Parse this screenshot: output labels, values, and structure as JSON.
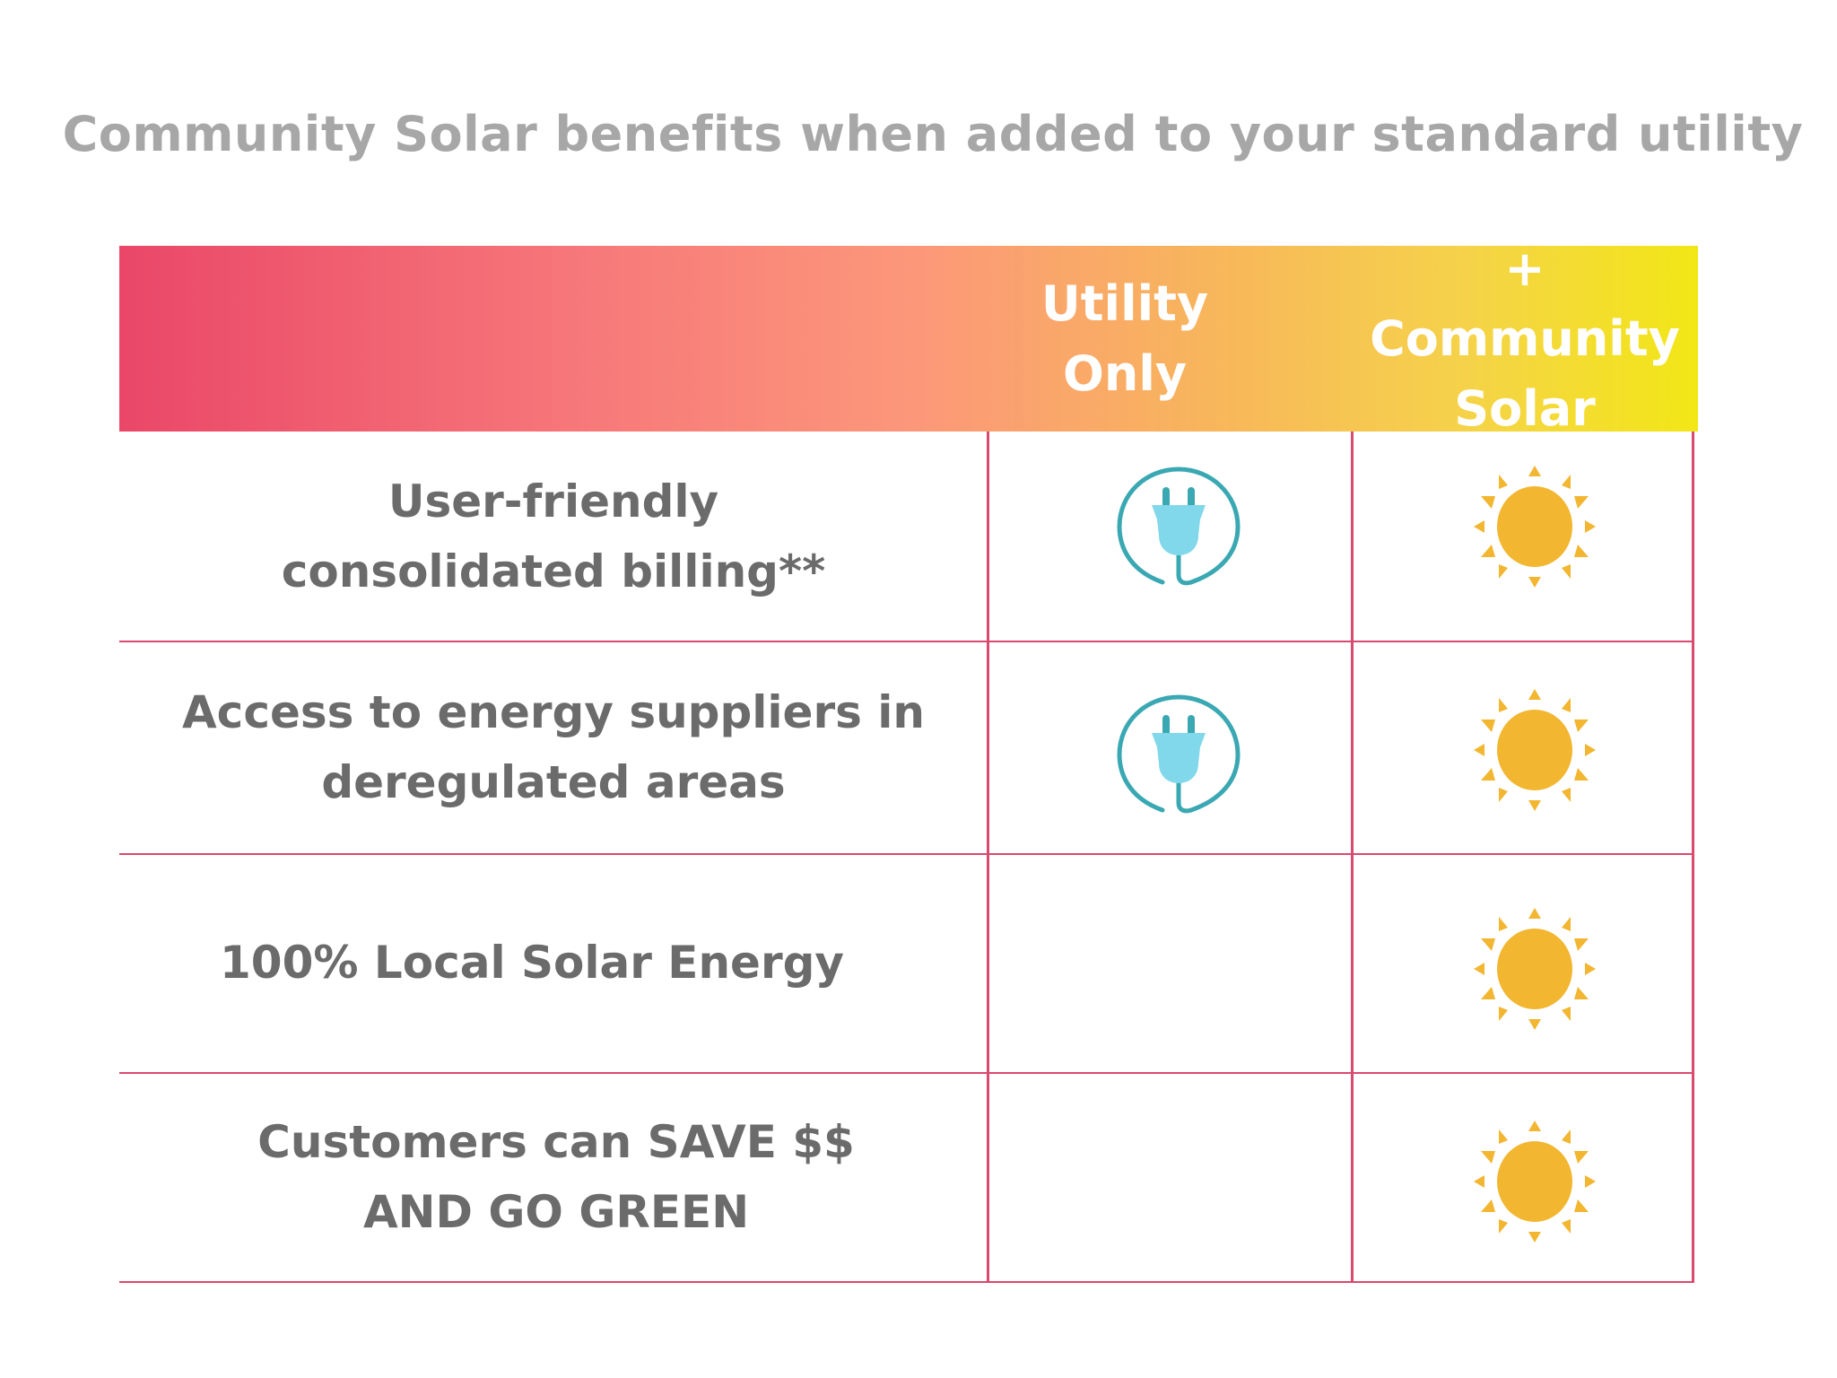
{
  "title": "Community Solar benefits when added to your standard utility",
  "columns": [
    {
      "label_line1": "Utility",
      "label_line2": "Only"
    },
    {
      "label_line1": "+ Community",
      "label_line2": "Solar"
    }
  ],
  "rows": [
    {
      "label_line1": "User-friendly",
      "label_line2": "consolidated billing**",
      "utility_only": "plug-icon",
      "community_solar": "sun-icon"
    },
    {
      "label_line1": "Access to energy suppliers in",
      "label_line2": "deregulated areas",
      "utility_only": "plug-icon",
      "community_solar": "sun-icon"
    },
    {
      "label_line1": "100% Local Solar Energy",
      "label_line2": "",
      "utility_only": null,
      "community_solar": "sun-icon"
    },
    {
      "label_line1": "Customers can SAVE $$",
      "label_line2": "AND GO GREEN",
      "utility_only": null,
      "community_solar": "sun-icon"
    }
  ],
  "colors": {
    "header_start": "#ea4768",
    "header_end": "#f2e716",
    "grid": "#d94a6e",
    "plug": "#3aa8b3",
    "plug_fill": "#80d8ea",
    "sun": "#f2b630",
    "text": "#6b6b6b",
    "title": "#a7a7a7"
  }
}
